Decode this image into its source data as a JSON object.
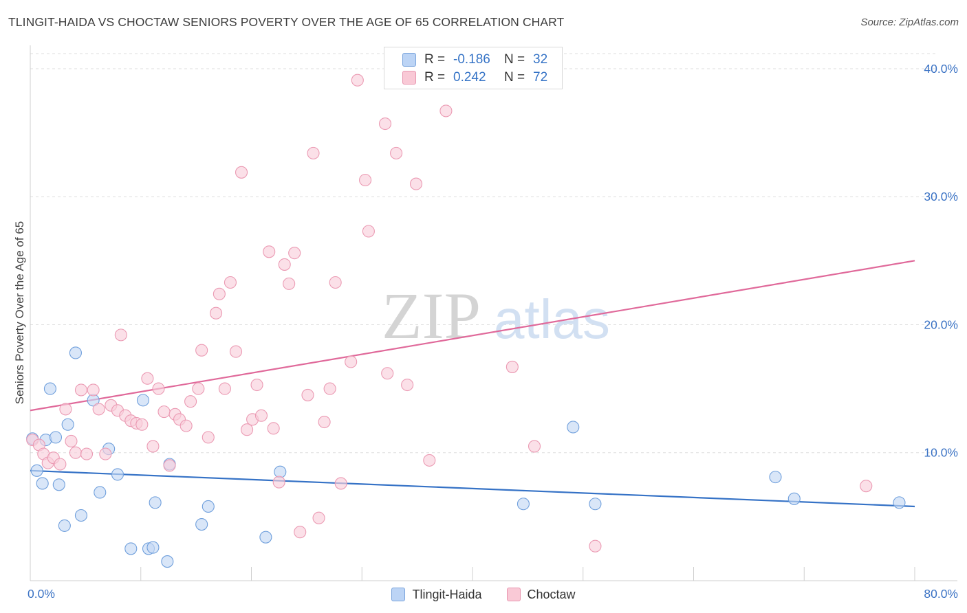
{
  "header": {
    "title": "TLINGIT-HAIDA VS CHOCTAW SENIORS POVERTY OVER THE AGE OF 65 CORRELATION CHART",
    "source": "Source: ZipAtlas.com"
  },
  "watermark": {
    "part1": "ZIP",
    "part2": "atlas"
  },
  "stats_legend": [
    {
      "r_label": "R =",
      "r_value": "-0.186",
      "n_label": "N =",
      "n_value": "32",
      "color": "#bcd4f5"
    },
    {
      "r_label": "R =",
      "r_value": "0.242",
      "n_label": "N =",
      "n_value": "72",
      "color": "#f9c9d6"
    }
  ],
  "chart_data": {
    "type": "scatter",
    "title": "TLINGIT-HAIDA VS CHOCTAW SENIORS POVERTY OVER THE AGE OF 65 CORRELATION CHART",
    "xlabel": "",
    "ylabel": "Seniors Poverty Over the Age of 65",
    "xlim": [
      0,
      80
    ],
    "ylim": [
      0,
      41.5
    ],
    "x_tick_labels": [
      {
        "value": 0,
        "label": "0.0%"
      },
      {
        "value": 80,
        "label": "80.0%"
      }
    ],
    "y_tick_labels": [
      {
        "value": 10,
        "label": "10.0%"
      },
      {
        "value": 20,
        "label": "20.0%"
      },
      {
        "value": 30,
        "label": "30.0%"
      },
      {
        "value": 40,
        "label": "40.0%"
      }
    ],
    "grid": true,
    "legend_position": "bottom-center",
    "series": [
      {
        "name": "Tlingit-Haida",
        "color": "#6f9fdc",
        "fill": "#c4d9f5",
        "line_color": "#3572c6",
        "trend": {
          "x": [
            0,
            80
          ],
          "y": [
            8.6,
            5.8
          ]
        },
        "points": [
          {
            "x": 0.2,
            "y": 11.1
          },
          {
            "x": 0.6,
            "y": 8.6
          },
          {
            "x": 1.1,
            "y": 7.6
          },
          {
            "x": 1.4,
            "y": 11.0
          },
          {
            "x": 1.8,
            "y": 15.0
          },
          {
            "x": 2.3,
            "y": 11.2
          },
          {
            "x": 2.6,
            "y": 7.5
          },
          {
            "x": 3.1,
            "y": 4.3
          },
          {
            "x": 3.4,
            "y": 12.2
          },
          {
            "x": 4.1,
            "y": 17.8
          },
          {
            "x": 4.6,
            "y": 5.1
          },
          {
            "x": 5.7,
            "y": 14.1
          },
          {
            "x": 6.3,
            "y": 6.9
          },
          {
            "x": 7.1,
            "y": 10.3
          },
          {
            "x": 7.9,
            "y": 8.3
          },
          {
            "x": 9.1,
            "y": 2.5
          },
          {
            "x": 10.2,
            "y": 14.1
          },
          {
            "x": 10.7,
            "y": 2.5
          },
          {
            "x": 11.1,
            "y": 2.6
          },
          {
            "x": 11.3,
            "y": 6.1
          },
          {
            "x": 12.4,
            "y": 1.5
          },
          {
            "x": 12.6,
            "y": 9.1
          },
          {
            "x": 15.5,
            "y": 4.4
          },
          {
            "x": 16.1,
            "y": 5.8
          },
          {
            "x": 21.3,
            "y": 3.4
          },
          {
            "x": 22.6,
            "y": 8.5
          },
          {
            "x": 44.6,
            "y": 6.0
          },
          {
            "x": 49.1,
            "y": 12.0
          },
          {
            "x": 51.1,
            "y": 6.0
          },
          {
            "x": 67.4,
            "y": 8.1
          },
          {
            "x": 69.1,
            "y": 6.4
          },
          {
            "x": 78.6,
            "y": 6.1
          }
        ]
      },
      {
        "name": "Choctaw",
        "color": "#eb9ab3",
        "fill": "#f9cfdb",
        "line_color": "#e0699a",
        "trend": {
          "x": [
            0,
            80
          ],
          "y": [
            13.3,
            25.0
          ]
        },
        "points": [
          {
            "x": 0.2,
            "y": 11.0
          },
          {
            "x": 0.8,
            "y": 10.6
          },
          {
            "x": 1.2,
            "y": 9.9
          },
          {
            "x": 1.6,
            "y": 9.2
          },
          {
            "x": 2.1,
            "y": 9.6
          },
          {
            "x": 2.7,
            "y": 9.1
          },
          {
            "x": 3.2,
            "y": 13.4
          },
          {
            "x": 3.7,
            "y": 10.9
          },
          {
            "x": 4.1,
            "y": 10.0
          },
          {
            "x": 4.6,
            "y": 14.9
          },
          {
            "x": 5.1,
            "y": 9.9
          },
          {
            "x": 5.7,
            "y": 14.9
          },
          {
            "x": 6.2,
            "y": 13.4
          },
          {
            "x": 6.8,
            "y": 9.9
          },
          {
            "x": 7.3,
            "y": 13.7
          },
          {
            "x": 7.9,
            "y": 13.3
          },
          {
            "x": 8.2,
            "y": 19.2
          },
          {
            "x": 8.6,
            "y": 12.9
          },
          {
            "x": 9.1,
            "y": 12.5
          },
          {
            "x": 9.6,
            "y": 12.3
          },
          {
            "x": 10.1,
            "y": 12.2
          },
          {
            "x": 10.6,
            "y": 15.8
          },
          {
            "x": 11.1,
            "y": 10.5
          },
          {
            "x": 11.6,
            "y": 15.0
          },
          {
            "x": 12.1,
            "y": 13.2
          },
          {
            "x": 12.6,
            "y": 9.0
          },
          {
            "x": 13.1,
            "y": 13.0
          },
          {
            "x": 13.5,
            "y": 12.6
          },
          {
            "x": 14.1,
            "y": 12.1
          },
          {
            "x": 14.5,
            "y": 14.0
          },
          {
            "x": 15.2,
            "y": 15.0
          },
          {
            "x": 15.5,
            "y": 18.0
          },
          {
            "x": 16.1,
            "y": 11.2
          },
          {
            "x": 16.8,
            "y": 20.9
          },
          {
            "x": 17.1,
            "y": 22.4
          },
          {
            "x": 17.6,
            "y": 15.0
          },
          {
            "x": 18.1,
            "y": 23.3
          },
          {
            "x": 18.6,
            "y": 17.9
          },
          {
            "x": 19.1,
            "y": 31.9
          },
          {
            "x": 19.6,
            "y": 11.8
          },
          {
            "x": 20.1,
            "y": 12.6
          },
          {
            "x": 20.5,
            "y": 15.3
          },
          {
            "x": 20.9,
            "y": 12.9
          },
          {
            "x": 21.6,
            "y": 25.7
          },
          {
            "x": 22.0,
            "y": 11.9
          },
          {
            "x": 22.5,
            "y": 7.7
          },
          {
            "x": 23.0,
            "y": 24.7
          },
          {
            "x": 23.4,
            "y": 23.2
          },
          {
            "x": 23.9,
            "y": 25.6
          },
          {
            "x": 24.4,
            "y": 3.8
          },
          {
            "x": 25.1,
            "y": 14.5
          },
          {
            "x": 25.6,
            "y": 33.4
          },
          {
            "x": 26.1,
            "y": 4.9
          },
          {
            "x": 26.6,
            "y": 12.4
          },
          {
            "x": 27.1,
            "y": 15.0
          },
          {
            "x": 27.6,
            "y": 23.3
          },
          {
            "x": 28.1,
            "y": 7.6
          },
          {
            "x": 29.0,
            "y": 17.1
          },
          {
            "x": 29.6,
            "y": 39.1
          },
          {
            "x": 30.3,
            "y": 31.3
          },
          {
            "x": 30.6,
            "y": 27.3
          },
          {
            "x": 32.1,
            "y": 35.7
          },
          {
            "x": 32.3,
            "y": 16.2
          },
          {
            "x": 33.1,
            "y": 33.4
          },
          {
            "x": 34.1,
            "y": 15.3
          },
          {
            "x": 34.9,
            "y": 31.0
          },
          {
            "x": 36.1,
            "y": 9.4
          },
          {
            "x": 37.6,
            "y": 36.7
          },
          {
            "x": 43.6,
            "y": 16.7
          },
          {
            "x": 45.6,
            "y": 10.5
          },
          {
            "x": 51.1,
            "y": 2.7
          },
          {
            "x": 75.6,
            "y": 7.4
          }
        ]
      }
    ]
  }
}
